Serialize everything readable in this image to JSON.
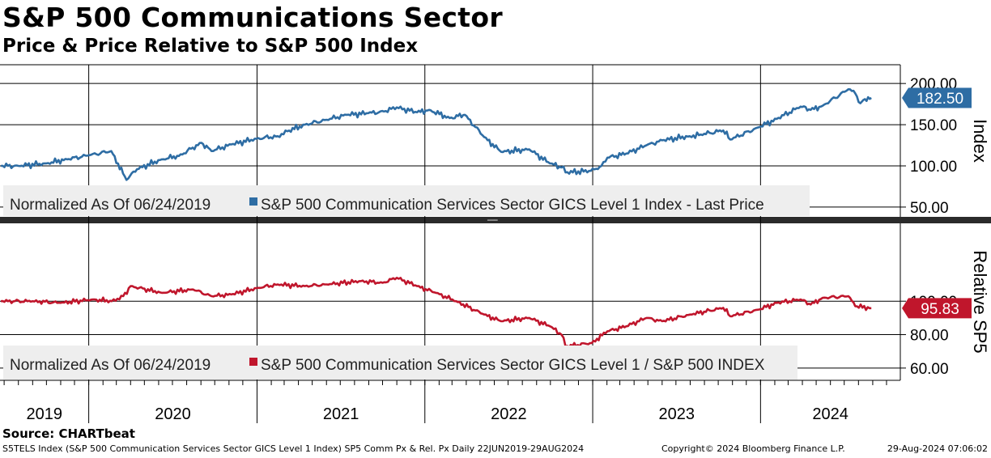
{
  "title": "S&P 500 Communications Sector",
  "subtitle": "Price & Price Relative to S&P 500 Index",
  "source": "Source: CHARTbeat",
  "footer": {
    "description": "S5TELS Index (S&P 500 Communication Services Sector GICS Level 1 Index) SP5 Comm Px & Rel. Px  Daily 22JUN2019-29AUG2024",
    "copyright": "Copyright© 2024 Bloomberg Finance L.P.",
    "timestamp": "29-Aug-2024 07:06:02"
  },
  "colors": {
    "price": "#2e6da4",
    "relative": "#c0162c",
    "grid": "#000000",
    "legend_bg": "#eeeeee"
  },
  "chart_data": [
    {
      "type": "line",
      "panel": "top",
      "ylabel": "Index",
      "ylim": [
        45,
        210
      ],
      "yticks": [
        "200.00",
        "150.00",
        "100.00",
        "50.00"
      ],
      "legend_label": "Normalized As Of 06/24/2019",
      "series": [
        {
          "name": "S&P 500 Communication Services Sector GICS Level 1 Index - Last Price",
          "last_value_label": "182.50",
          "x": [
            "2019-06-24",
            "2019-08-01",
            "2019-10-01",
            "2019-11-15",
            "2020-01-02",
            "2020-02-19",
            "2020-03-23",
            "2020-04-15",
            "2020-06-08",
            "2020-07-15",
            "2020-09-02",
            "2020-09-24",
            "2020-11-06",
            "2020-12-31",
            "2021-02-15",
            "2021-03-08",
            "2021-04-15",
            "2021-06-01",
            "2021-07-15",
            "2021-08-31",
            "2021-10-04",
            "2021-11-01",
            "2021-12-15",
            "2022-01-10",
            "2022-02-24",
            "2022-03-29",
            "2022-05-10",
            "2022-06-16",
            "2022-08-16",
            "2022-09-30",
            "2022-10-25",
            "2022-11-03",
            "2022-12-28",
            "2023-01-20",
            "2023-02-02",
            "2023-03-15",
            "2023-04-28",
            "2023-06-01",
            "2023-07-31",
            "2023-08-24",
            "2023-10-12",
            "2023-10-27",
            "2023-12-29",
            "2024-02-05",
            "2024-03-28",
            "2024-04-19",
            "2024-05-15",
            "2024-07-10",
            "2024-07-25",
            "2024-08-05",
            "2024-08-15",
            "2024-08-29"
          ],
          "y": [
            100,
            100,
            103,
            108,
            113,
            118,
            83,
            96,
            108,
            112,
            128,
            118,
            126,
            133,
            136,
            142,
            150,
            156,
            162,
            164,
            166,
            171,
            165,
            168,
            158,
            162,
            135,
            117,
            120,
            103,
            98,
            92,
            94,
            100,
            110,
            115,
            125,
            131,
            136,
            138,
            143,
            132,
            147,
            157,
            172,
            168,
            173,
            193,
            188,
            176,
            181,
            182.5
          ]
        }
      ]
    },
    {
      "type": "line",
      "panel": "bottom",
      "ylabel": "Relative SP5",
      "ylim": [
        58,
        118
      ],
      "yticks": [
        "100.00",
        "80.00",
        "60.00"
      ],
      "legend_label": "Normalized As Of 06/24/2019",
      "series": [
        {
          "name": "S&P 500 Communication Services Sector GICS Level 1 / S&P 500 INDEX",
          "last_value_label": "95.83",
          "x": [
            "2019-06-24",
            "2019-09-01",
            "2019-11-01",
            "2020-01-10",
            "2020-02-20",
            "2020-03-16",
            "2020-04-01",
            "2020-06-08",
            "2020-08-15",
            "2020-09-24",
            "2020-11-06",
            "2021-01-04",
            "2021-02-15",
            "2021-04-15",
            "2021-06-01",
            "2021-08-15",
            "2021-10-01",
            "2021-11-01",
            "2021-12-15",
            "2022-01-25",
            "2022-03-10",
            "2022-05-10",
            "2022-06-16",
            "2022-08-16",
            "2022-09-30",
            "2022-10-25",
            "2022-11-03",
            "2022-12-30",
            "2023-02-02",
            "2023-03-15",
            "2023-04-28",
            "2023-06-01",
            "2023-08-01",
            "2023-10-12",
            "2023-10-27",
            "2023-12-29",
            "2024-02-05",
            "2024-03-28",
            "2024-04-19",
            "2024-05-15",
            "2024-07-10",
            "2024-07-25",
            "2024-08-29"
          ],
          "y": [
            100,
            100,
            99,
            101,
            100,
            103,
            109,
            105,
            107,
            103,
            104,
            108,
            110,
            109,
            110,
            112,
            111,
            114,
            109,
            105,
            100,
            92,
            88,
            90,
            85,
            80,
            73,
            75,
            82,
            85,
            90,
            88,
            92,
            96,
            91,
            95,
            99,
            101,
            98,
            102,
            103,
            97,
            95.83
          ]
        }
      ]
    }
  ],
  "x_axis": {
    "labels": [
      "2019",
      "2020",
      "2021",
      "2022",
      "2023",
      "2024"
    ],
    "range": [
      "2019-06-22",
      "2024-10-31"
    ]
  }
}
